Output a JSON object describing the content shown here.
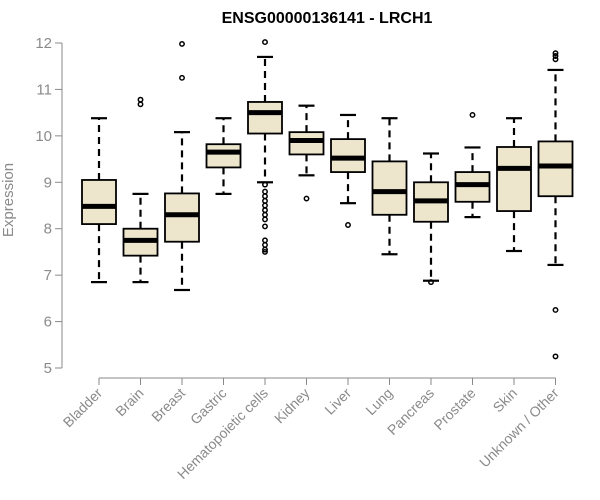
{
  "chart_data": {
    "type": "boxplot",
    "title": "ENSG00000136141 - LRCH1",
    "xlabel": "",
    "ylabel": "Expression",
    "ylim": [
      5,
      12
    ],
    "yticks": [
      5,
      6,
      7,
      8,
      9,
      10,
      11,
      12
    ],
    "grid": false,
    "box_color": "#ede6cc",
    "categories": [
      "Bladder",
      "Brain",
      "Breast",
      "Gastric",
      "Hematopoietic cells",
      "Kidney",
      "Liver",
      "Lung",
      "Pancreas",
      "Prostate",
      "Skin",
      "Unknown / Other"
    ],
    "boxes": [
      {
        "whislo": 6.85,
        "q1": 8.1,
        "med": 8.48,
        "q3": 9.05,
        "whishi": 10.38,
        "fliers": []
      },
      {
        "whislo": 6.85,
        "q1": 7.42,
        "med": 7.75,
        "q3": 8.0,
        "whishi": 8.75,
        "fliers": [
          10.68,
          10.78
        ]
      },
      {
        "whislo": 6.68,
        "q1": 7.72,
        "med": 8.3,
        "q3": 8.76,
        "whishi": 10.08,
        "fliers": [
          11.25,
          11.98
        ]
      },
      {
        "whislo": 8.75,
        "q1": 9.32,
        "med": 9.65,
        "q3": 9.82,
        "whishi": 10.38,
        "fliers": []
      },
      {
        "whislo": 9.0,
        "q1": 10.05,
        "med": 10.5,
        "q3": 10.73,
        "whishi": 11.7,
        "fliers": [
          12.02,
          8.95,
          8.8,
          8.7,
          8.6,
          8.5,
          8.4,
          8.3,
          8.2,
          8.05,
          7.75,
          7.65,
          7.55,
          7.5
        ]
      },
      {
        "whislo": 9.15,
        "q1": 9.6,
        "med": 9.9,
        "q3": 10.08,
        "whishi": 10.65,
        "fliers": [
          8.65
        ]
      },
      {
        "whislo": 8.55,
        "q1": 9.22,
        "med": 9.52,
        "q3": 9.93,
        "whishi": 10.45,
        "fliers": [
          8.08
        ]
      },
      {
        "whislo": 7.45,
        "q1": 8.3,
        "med": 8.8,
        "q3": 9.45,
        "whishi": 10.38,
        "fliers": []
      },
      {
        "whislo": 6.88,
        "q1": 8.15,
        "med": 8.6,
        "q3": 9.0,
        "whishi": 9.62,
        "fliers": [
          6.85
        ]
      },
      {
        "whislo": 8.25,
        "q1": 8.58,
        "med": 8.95,
        "q3": 9.22,
        "whishi": 9.75,
        "fliers": [
          10.45
        ]
      },
      {
        "whislo": 7.52,
        "q1": 8.38,
        "med": 9.3,
        "q3": 9.76,
        "whishi": 10.38,
        "fliers": []
      },
      {
        "whislo": 7.22,
        "q1": 8.7,
        "med": 9.35,
        "q3": 9.88,
        "whishi": 11.42,
        "fliers": [
          11.65,
          11.72,
          11.78,
          6.25,
          5.25
        ]
      }
    ]
  }
}
